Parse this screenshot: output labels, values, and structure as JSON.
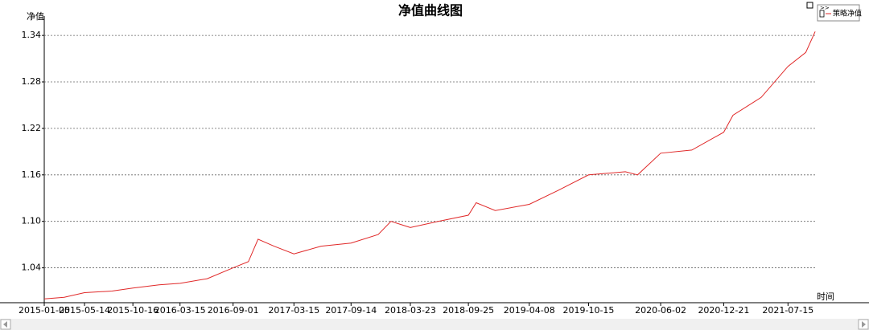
{
  "chart_data": {
    "type": "line",
    "title": "净值曲线图",
    "ylabel": "净值",
    "xlabel": "时间",
    "legend_toggle": ">>",
    "x": [
      "2015-01-05",
      "2015-03-10",
      "2015-05-14",
      "2015-08-10",
      "2015-10-16",
      "2016-01-08",
      "2016-03-15",
      "2016-06-10",
      "2016-09-01",
      "2016-10-20",
      "2016-11-20",
      "2017-01-10",
      "2017-03-15",
      "2017-06-10",
      "2017-09-14",
      "2017-12-10",
      "2018-01-20",
      "2018-03-23",
      "2018-06-20",
      "2018-09-25",
      "2018-10-20",
      "2018-12-20",
      "2019-04-08",
      "2019-07-10",
      "2019-10-15",
      "2020-02-10",
      "2020-03-20",
      "2020-06-02",
      "2020-09-10",
      "2020-12-21",
      "2021-01-20",
      "2021-04-20",
      "2021-07-15",
      "2021-09-10",
      "2021-10-10"
    ],
    "series": [
      {
        "name": "策略净值",
        "color": "#e02828",
        "values": [
          1.0,
          1.002,
          1.008,
          1.01,
          1.014,
          1.018,
          1.02,
          1.026,
          1.04,
          1.048,
          1.077,
          1.068,
          1.058,
          1.068,
          1.072,
          1.083,
          1.1,
          1.092,
          1.1,
          1.108,
          1.124,
          1.114,
          1.122,
          1.14,
          1.16,
          1.164,
          1.16,
          1.188,
          1.192,
          1.215,
          1.237,
          1.26,
          1.3,
          1.318,
          1.345
        ]
      }
    ],
    "xlim": [
      "2015-01-05",
      "2021-10-15"
    ],
    "xticks": [
      "2015-01-05",
      "2015-05-14",
      "2015-10-16",
      "2016-03-15",
      "2016-09-01",
      "2017-03-15",
      "2017-09-14",
      "2018-03-23",
      "2018-09-25",
      "2019-04-08",
      "2019-10-15",
      "2020-06-02",
      "2020-12-21",
      "2021-07-15"
    ],
    "ylim": [
      0.995,
      1.365
    ],
    "yticks": [
      1.04,
      {
        "value": 1.1,
        "label": "1.10"
      },
      1.16,
      1.22,
      1.28,
      1.34
    ],
    "grid": true
  }
}
